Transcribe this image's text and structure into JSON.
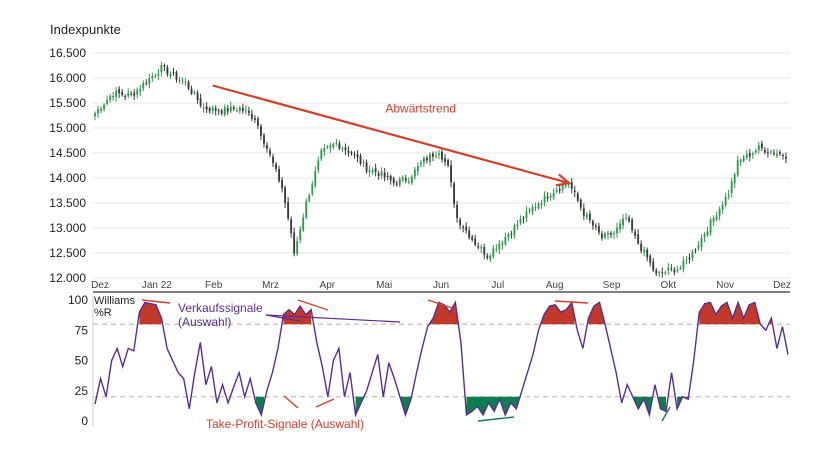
{
  "chart_data": [
    {
      "type": "candlestick",
      "ylabel": "Indexpunkte",
      "ylim": [
        11800,
        16400
      ],
      "yticks": [
        12000,
        12500,
        13000,
        13500,
        14000,
        14500,
        15000,
        15500,
        16000,
        16500
      ],
      "ytick_labels": [
        "12.000",
        "12.500",
        "13.000",
        "13.500",
        "14.000",
        "14.500",
        "15.000",
        "15.500",
        "16.000",
        "16.500"
      ],
      "xlabels": [
        "Dez",
        "Jan 22",
        "Feb",
        "Mrz",
        "Apr",
        "Mai",
        "Jun",
        "Jul",
        "Aug",
        "Sep",
        "Okt",
        "Nov",
        "Dez"
      ],
      "colors": {
        "up": "#2e9b4a",
        "down": "#3a3a3a",
        "trend": "#d0402a",
        "grid": "#e6e6e6"
      },
      "anchors": [
        [
          0,
          15300
        ],
        [
          6,
          15700
        ],
        [
          12,
          15650
        ],
        [
          20,
          16100
        ],
        [
          22,
          16200
        ],
        [
          30,
          15900
        ],
        [
          36,
          15400
        ],
        [
          42,
          15350
        ],
        [
          48,
          15400
        ],
        [
          53,
          15200
        ],
        [
          57,
          14600
        ],
        [
          62,
          13800
        ],
        [
          64,
          13200
        ],
        [
          66,
          12500
        ],
        [
          70,
          13500
        ],
        [
          75,
          14500
        ],
        [
          80,
          14700
        ],
        [
          85,
          14500
        ],
        [
          90,
          14200
        ],
        [
          94,
          14100
        ],
        [
          99,
          13900
        ],
        [
          104,
          14000
        ],
        [
          109,
          14350
        ],
        [
          114,
          14550
        ],
        [
          117,
          14200
        ],
        [
          120,
          13200
        ],
        [
          126,
          12700
        ],
        [
          130,
          12450
        ],
        [
          134,
          12700
        ],
        [
          138,
          12950
        ],
        [
          145,
          13400
        ],
        [
          152,
          13750
        ],
        [
          157,
          13900
        ],
        [
          162,
          13300
        ],
        [
          168,
          12800
        ],
        [
          172,
          12900
        ],
        [
          176,
          13200
        ],
        [
          179,
          12800
        ],
        [
          183,
          12400
        ],
        [
          186,
          12050
        ],
        [
          190,
          12150
        ],
        [
          194,
          12200
        ],
        [
          198,
          12500
        ],
        [
          204,
          13100
        ],
        [
          210,
          13700
        ],
        [
          213,
          14300
        ],
        [
          220,
          14600
        ],
        [
          229,
          14450
        ]
      ],
      "annotations": [
        {
          "label": "Abwärtstrend",
          "from": [
            39,
            15850
          ],
          "to": [
            157,
            13900
          ]
        }
      ]
    },
    {
      "type": "line",
      "ylabel": "Williams %R",
      "ylim": [
        0,
        100
      ],
      "yticks": [
        0,
        25,
        50,
        75,
        100
      ],
      "levels": [
        80,
        20
      ],
      "colors": {
        "line": "#5b2d8e",
        "overbought": "#c0392b",
        "oversold": "#0e7d4e",
        "signal": "#d0402a",
        "level": "#bbbbbb"
      },
      "anchors": [
        [
          0,
          14
        ],
        [
          2,
          35
        ],
        [
          4,
          20
        ],
        [
          6,
          50
        ],
        [
          8,
          60
        ],
        [
          10,
          45
        ],
        [
          12,
          60
        ],
        [
          14,
          58
        ],
        [
          16,
          90
        ],
        [
          18,
          98
        ],
        [
          20,
          97
        ],
        [
          22,
          96
        ],
        [
          24,
          85
        ],
        [
          26,
          60
        ],
        [
          28,
          50
        ],
        [
          30,
          40
        ],
        [
          32,
          35
        ],
        [
          34,
          10
        ],
        [
          36,
          40
        ],
        [
          38,
          65
        ],
        [
          40,
          30
        ],
        [
          42,
          45
        ],
        [
          44,
          15
        ],
        [
          46,
          30
        ],
        [
          48,
          15
        ],
        [
          50,
          28
        ],
        [
          52,
          40
        ],
        [
          54,
          20
        ],
        [
          56,
          35
        ],
        [
          58,
          15
        ],
        [
          60,
          5
        ],
        [
          62,
          25
        ],
        [
          64,
          40
        ],
        [
          66,
          60
        ],
        [
          68,
          88
        ],
        [
          70,
          92
        ],
        [
          72,
          88
        ],
        [
          74,
          95
        ],
        [
          76,
          88
        ],
        [
          78,
          92
        ],
        [
          80,
          65
        ],
        [
          82,
          45
        ],
        [
          84,
          20
        ],
        [
          86,
          50
        ],
        [
          88,
          60
        ],
        [
          90,
          20
        ],
        [
          92,
          40
        ],
        [
          94,
          5
        ],
        [
          96,
          15
        ],
        [
          98,
          25
        ],
        [
          100,
          40
        ],
        [
          102,
          55
        ],
        [
          104,
          20
        ],
        [
          106,
          48
        ],
        [
          108,
          35
        ],
        [
          110,
          20
        ],
        [
          112,
          5
        ],
        [
          114,
          18
        ],
        [
          116,
          40
        ],
        [
          118,
          60
        ],
        [
          120,
          78
        ],
        [
          122,
          85
        ],
        [
          124,
          98
        ],
        [
          126,
          96
        ],
        [
          128,
          90
        ],
        [
          130,
          98
        ],
        [
          132,
          65
        ],
        [
          134,
          5
        ],
        [
          136,
          8
        ],
        [
          138,
          12
        ],
        [
          140,
          5
        ],
        [
          142,
          15
        ],
        [
          144,
          8
        ],
        [
          146,
          18
        ],
        [
          148,
          5
        ],
        [
          150,
          15
        ],
        [
          152,
          10
        ],
        [
          154,
          25
        ],
        [
          156,
          40
        ],
        [
          158,
          55
        ],
        [
          160,
          75
        ],
        [
          162,
          88
        ],
        [
          164,
          95
        ],
        [
          166,
          96
        ],
        [
          168,
          90
        ],
        [
          170,
          92
        ],
        [
          172,
          98
        ],
        [
          174,
          75
        ],
        [
          176,
          60
        ],
        [
          178,
          85
        ],
        [
          180,
          95
        ],
        [
          182,
          98
        ],
        [
          184,
          80
        ],
        [
          186,
          60
        ],
        [
          188,
          40
        ],
        [
          190,
          15
        ],
        [
          192,
          30
        ],
        [
          194,
          20
        ],
        [
          196,
          10
        ],
        [
          198,
          18
        ],
        [
          200,
          5
        ],
        [
          202,
          30
        ],
        [
          204,
          10
        ],
        [
          206,
          8
        ],
        [
          208,
          40
        ],
        [
          210,
          10
        ],
        [
          212,
          20
        ],
        [
          214,
          18
        ],
        [
          216,
          50
        ],
        [
          218,
          90
        ],
        [
          220,
          97
        ],
        [
          222,
          98
        ],
        [
          224,
          88
        ],
        [
          226,
          95
        ],
        [
          228,
          98
        ],
        [
          230,
          85
        ],
        [
          232,
          98
        ],
        [
          234,
          85
        ],
        [
          236,
          96
        ],
        [
          238,
          98
        ],
        [
          240,
          80
        ],
        [
          242,
          75
        ],
        [
          244,
          85
        ],
        [
          246,
          60
        ],
        [
          248,
          78
        ],
        [
          250,
          55
        ]
      ],
      "annotations": [
        {
          "label": "Verkaufssignale (Auswahl)"
        },
        {
          "label": "Take-Profit-Signale (Auswahl)"
        }
      ]
    }
  ]
}
